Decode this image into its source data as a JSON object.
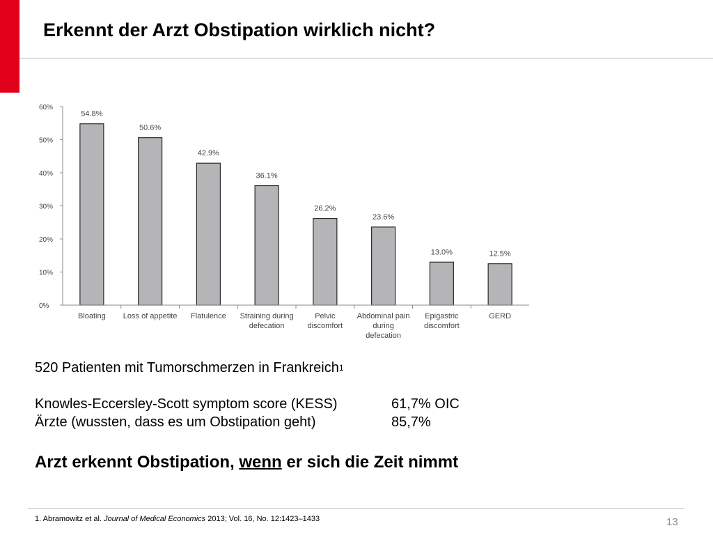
{
  "title": "Erkennt der Arzt Obstipation wirklich nicht?",
  "chart_data": {
    "type": "bar",
    "categories": [
      [
        "Bloating"
      ],
      [
        "Loss of appetite"
      ],
      [
        "Flatulence"
      ],
      [
        "Straining during",
        "defecation"
      ],
      [
        "Pelvic",
        "discomfort"
      ],
      [
        "Abdominal pain",
        "during",
        "defecation"
      ],
      [
        "Epigastric",
        "discomfort"
      ],
      [
        "GERD"
      ]
    ],
    "values": [
      54.8,
      50.6,
      42.9,
      36.1,
      26.2,
      23.6,
      13.0,
      12.5
    ],
    "value_labels": [
      "54.8%",
      "50.6%",
      "42.9%",
      "36.1%",
      "26.2%",
      "23.6%",
      "13.0%",
      "12.5%"
    ],
    "y_ticks": [
      "0%",
      "10%",
      "20%",
      "30%",
      "40%",
      "50%",
      "60%"
    ],
    "ylim": [
      0,
      60
    ],
    "grid": false,
    "legend": "none",
    "colors": {
      "bar_fill": "#b5b5b8",
      "bar_stroke": "#2b2b2b"
    }
  },
  "info": {
    "line1_text": "520 Patienten mit Tumorschmerzen in Frankreich",
    "line1_sup": "1",
    "rows": [
      {
        "label": "Knowles-Eccersley-Scott symptom score (KESS)",
        "value": "61,7% OIC"
      },
      {
        "label": "Ärzte (wussten, dass es um Obstipation geht)",
        "value": "85,7%"
      }
    ]
  },
  "conclusion": {
    "pre": "Arzt erkennt Obstipation, ",
    "underlined": "wenn",
    "post": " er sich die Zeit nimmt"
  },
  "footnote": {
    "pre": "1. Abramowitz et al. ",
    "journal": "Journal of Medical Economics",
    "post": " 2013; Vol. 16, No. 12:1423–1433"
  },
  "slide_number": "13",
  "accent_color": "#e3001b"
}
